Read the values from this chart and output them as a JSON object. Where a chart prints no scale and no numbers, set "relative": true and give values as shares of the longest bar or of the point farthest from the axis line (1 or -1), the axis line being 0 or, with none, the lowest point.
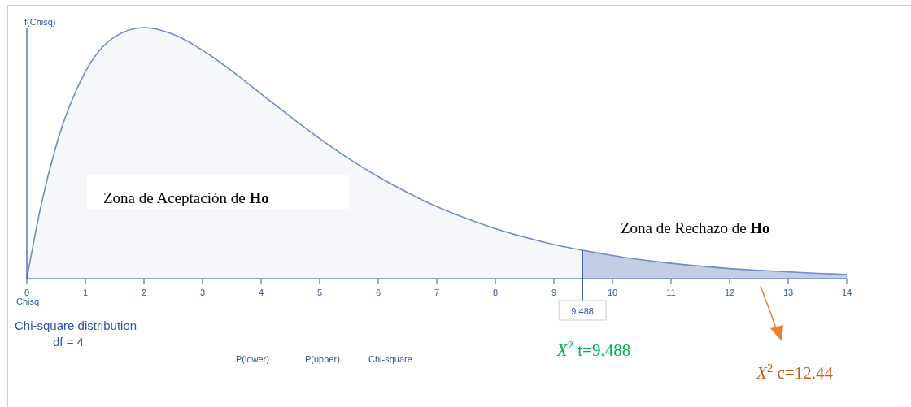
{
  "chart_data": {
    "type": "area",
    "title": "Chi-square distribution",
    "subtitle": "df = 4",
    "xlabel": "Chisq",
    "ylabel": "f(Chisq)",
    "relative": true,
    "xlim": [
      0,
      14
    ],
    "xticks": [
      0,
      1,
      2,
      3,
      4,
      5,
      6,
      7,
      8,
      9,
      10,
      11,
      12,
      13,
      14
    ],
    "series": [
      {
        "color": "#f5f7fb",
        "x": [
          0,
          0.25,
          0.5,
          1,
          1.5,
          2,
          2.5,
          3,
          3.5,
          4,
          4.5,
          5,
          5.5,
          6,
          6.5,
          7,
          7.5,
          8,
          8.5,
          9,
          9.488
        ],
        "values": [
          0,
          0.3,
          0.529,
          0.824,
          0.963,
          1,
          0.973,
          0.91,
          0.827,
          0.736,
          0.645,
          0.558,
          0.478,
          0.406,
          0.343,
          0.287,
          0.24,
          0.199,
          0.165,
          0.136,
          0.113
        ]
      },
      {
        "color": "#c3cde3",
        "x": [
          9.488,
          10,
          10.5,
          11,
          11.5,
          12,
          12.5,
          13,
          13.5,
          14
        ],
        "values": [
          0.113,
          0.092,
          0.075,
          0.061,
          0.05,
          0.04,
          0.033,
          0.027,
          0.021,
          0.017
        ]
      }
    ],
    "ref_lines": [
      {
        "axis": "x",
        "value": 9.488,
        "label": "9.488",
        "color": "#2f55a4"
      }
    ],
    "annotations": [
      "Zona de Aceptación de Ho",
      "Zona de Rechazo de Ho",
      "X$^{2}$ t=9.488",
      "X$^{2}$ c=12.44",
      "P(lower)",
      "P(upper)",
      "Chi-square"
    ]
  }
}
